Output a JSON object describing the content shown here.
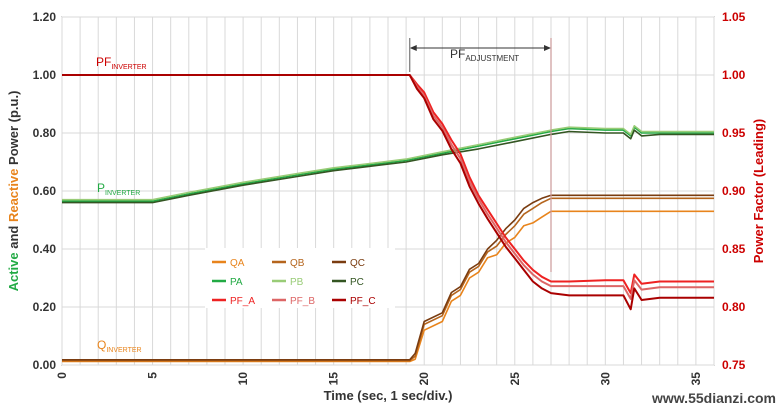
{
  "chart_data": {
    "type": "line",
    "x_axis": {
      "label": "Time (sec, 1 sec/div.)",
      "range": [
        0,
        36
      ],
      "ticks": [
        "0",
        "5",
        "10",
        "15",
        "20",
        "25",
        "30",
        "35"
      ]
    },
    "y_left": {
      "label_parts": [
        "Active",
        " and ",
        "Reactive",
        " Power (p.u.)"
      ],
      "range": [
        0.0,
        1.2
      ],
      "ticks": [
        "0.00",
        "0.20",
        "0.40",
        "0.60",
        "0.80",
        "1.00",
        "1.20"
      ]
    },
    "y_right": {
      "label": "Power Factor (Leading)",
      "range": [
        0.75,
        1.05
      ],
      "ticks": [
        "0.75",
        "0.80",
        "0.85",
        "0.90",
        "0.95",
        "1.00",
        "1.05"
      ]
    },
    "annotations": {
      "pf_inverter_main": "PF",
      "pf_inverter_sub": "INVERTER",
      "p_inverter_main": "P",
      "p_inverter_sub": "INVERTER",
      "q_inverter_main": "Q",
      "q_inverter_sub": "INVERTER",
      "pf_adjust_main": "PF",
      "pf_adjust_sub": "ADJUSTMENT",
      "pf_adjust_start": 19.2,
      "pf_adjust_end": 27.0
    },
    "legend": [
      {
        "label": "QA",
        "color": "#e8841c"
      },
      {
        "label": "QB",
        "color": "#b5651d"
      },
      {
        "label": "QC",
        "color": "#7a3c10"
      },
      {
        "label": "PA",
        "color": "#22aa44"
      },
      {
        "label": "PB",
        "color": "#99cc77"
      },
      {
        "label": "PC",
        "color": "#335522"
      },
      {
        "label": "PF_A",
        "color": "#ee2222"
      },
      {
        "label": "PF_B",
        "color": "#dd6666"
      },
      {
        "label": "PF_C",
        "color": "#aa0000"
      }
    ],
    "series": [
      {
        "name": "PA",
        "axis": "left",
        "color": "#22aa44",
        "x": [
          0,
          5,
          7,
          10,
          13,
          15,
          17,
          19,
          21,
          23,
          25,
          27,
          28,
          30,
          31,
          31.4,
          31.6,
          32,
          33,
          34,
          35,
          36
        ],
        "y": [
          0.565,
          0.565,
          0.59,
          0.625,
          0.655,
          0.675,
          0.69,
          0.705,
          0.73,
          0.755,
          0.78,
          0.805,
          0.815,
          0.81,
          0.81,
          0.79,
          0.82,
          0.8,
          0.8,
          0.8,
          0.8,
          0.8
        ]
      },
      {
        "name": "PB",
        "axis": "left",
        "color": "#99cc77",
        "x": [
          0,
          5,
          7,
          10,
          13,
          15,
          17,
          19,
          21,
          23,
          25,
          27,
          28,
          30,
          31,
          31.4,
          31.6,
          32,
          33,
          34,
          35,
          36
        ],
        "y": [
          0.57,
          0.57,
          0.595,
          0.63,
          0.66,
          0.68,
          0.695,
          0.71,
          0.735,
          0.76,
          0.785,
          0.81,
          0.82,
          0.815,
          0.815,
          0.795,
          0.825,
          0.805,
          0.805,
          0.805,
          0.805,
          0.805
        ]
      },
      {
        "name": "PC",
        "axis": "left",
        "color": "#335522",
        "x": [
          0,
          5,
          7,
          10,
          13,
          15,
          17,
          19,
          21,
          23,
          25,
          27,
          28,
          30,
          31,
          31.4,
          31.6,
          32,
          33,
          34,
          35,
          36
        ],
        "y": [
          0.56,
          0.56,
          0.585,
          0.62,
          0.65,
          0.67,
          0.685,
          0.7,
          0.725,
          0.745,
          0.77,
          0.795,
          0.805,
          0.8,
          0.8,
          0.78,
          0.81,
          0.79,
          0.795,
          0.795,
          0.795,
          0.795
        ]
      },
      {
        "name": "QA",
        "axis": "left",
        "color": "#e8841c",
        "x": [
          0,
          19.2,
          19.5,
          20,
          21,
          21.5,
          22,
          22.5,
          23,
          23.5,
          24,
          24.5,
          25,
          25.5,
          26,
          26.5,
          27,
          36
        ],
        "y": [
          0.012,
          0.012,
          0.02,
          0.12,
          0.15,
          0.22,
          0.24,
          0.3,
          0.32,
          0.37,
          0.38,
          0.42,
          0.44,
          0.48,
          0.49,
          0.51,
          0.53,
          0.53
        ]
      },
      {
        "name": "QB",
        "axis": "left",
        "color": "#b5651d",
        "x": [
          0,
          19.2,
          19.5,
          20,
          21,
          21.5,
          22,
          22.5,
          23,
          23.5,
          24,
          24.5,
          25,
          25.5,
          26,
          26.5,
          27,
          36
        ],
        "y": [
          0.015,
          0.015,
          0.03,
          0.14,
          0.17,
          0.24,
          0.26,
          0.32,
          0.34,
          0.39,
          0.41,
          0.45,
          0.48,
          0.52,
          0.54,
          0.56,
          0.575,
          0.575
        ]
      },
      {
        "name": "QC",
        "axis": "left",
        "color": "#7a3c10",
        "x": [
          0,
          19.2,
          19.5,
          20,
          21,
          21.5,
          22,
          22.5,
          23,
          23.5,
          24,
          24.5,
          25,
          25.5,
          26,
          26.5,
          27,
          36
        ],
        "y": [
          0.018,
          0.018,
          0.04,
          0.15,
          0.18,
          0.25,
          0.27,
          0.33,
          0.35,
          0.4,
          0.43,
          0.47,
          0.5,
          0.54,
          0.56,
          0.575,
          0.585,
          0.585
        ]
      },
      {
        "name": "PF_A",
        "axis": "right",
        "color": "#ee2222",
        "x": [
          0,
          19.2,
          19.6,
          20,
          20.5,
          21,
          21.5,
          22,
          22.5,
          23,
          23.5,
          24,
          24.5,
          25,
          25.5,
          26,
          26.5,
          27,
          28,
          30,
          31,
          31.4,
          31.6,
          32,
          33,
          36
        ],
        "y": [
          1.0,
          1.0,
          0.992,
          0.985,
          0.968,
          0.958,
          0.944,
          0.932,
          0.912,
          0.896,
          0.884,
          0.872,
          0.86,
          0.85,
          0.84,
          0.832,
          0.826,
          0.822,
          0.822,
          0.823,
          0.823,
          0.812,
          0.828,
          0.82,
          0.822,
          0.822
        ]
      },
      {
        "name": "PF_B",
        "axis": "right",
        "color": "#dd6666",
        "x": [
          0,
          19.2,
          19.6,
          20,
          20.5,
          21,
          21.5,
          22,
          22.5,
          23,
          23.5,
          24,
          24.5,
          25,
          25.5,
          26,
          26.5,
          27,
          28,
          30,
          31,
          31.4,
          31.6,
          32,
          33,
          36
        ],
        "y": [
          1.0,
          1.0,
          0.99,
          0.982,
          0.965,
          0.955,
          0.94,
          0.928,
          0.908,
          0.893,
          0.88,
          0.868,
          0.856,
          0.846,
          0.836,
          0.828,
          0.822,
          0.818,
          0.818,
          0.818,
          0.818,
          0.807,
          0.823,
          0.815,
          0.817,
          0.817
        ]
      },
      {
        "name": "PF_C",
        "axis": "right",
        "color": "#aa0000",
        "x": [
          0,
          19.2,
          19.6,
          20,
          20.5,
          21,
          21.5,
          22,
          22.5,
          23,
          23.5,
          24,
          24.5,
          25,
          25.5,
          26,
          26.5,
          27,
          28,
          30,
          31,
          31.4,
          31.6,
          32,
          33,
          36
        ],
        "y": [
          1.0,
          1.0,
          0.988,
          0.98,
          0.962,
          0.952,
          0.936,
          0.924,
          0.904,
          0.889,
          0.876,
          0.864,
          0.852,
          0.842,
          0.832,
          0.822,
          0.816,
          0.812,
          0.81,
          0.81,
          0.81,
          0.798,
          0.816,
          0.806,
          0.808,
          0.808
        ]
      }
    ]
  },
  "watermark": "www.55dianzi.com"
}
